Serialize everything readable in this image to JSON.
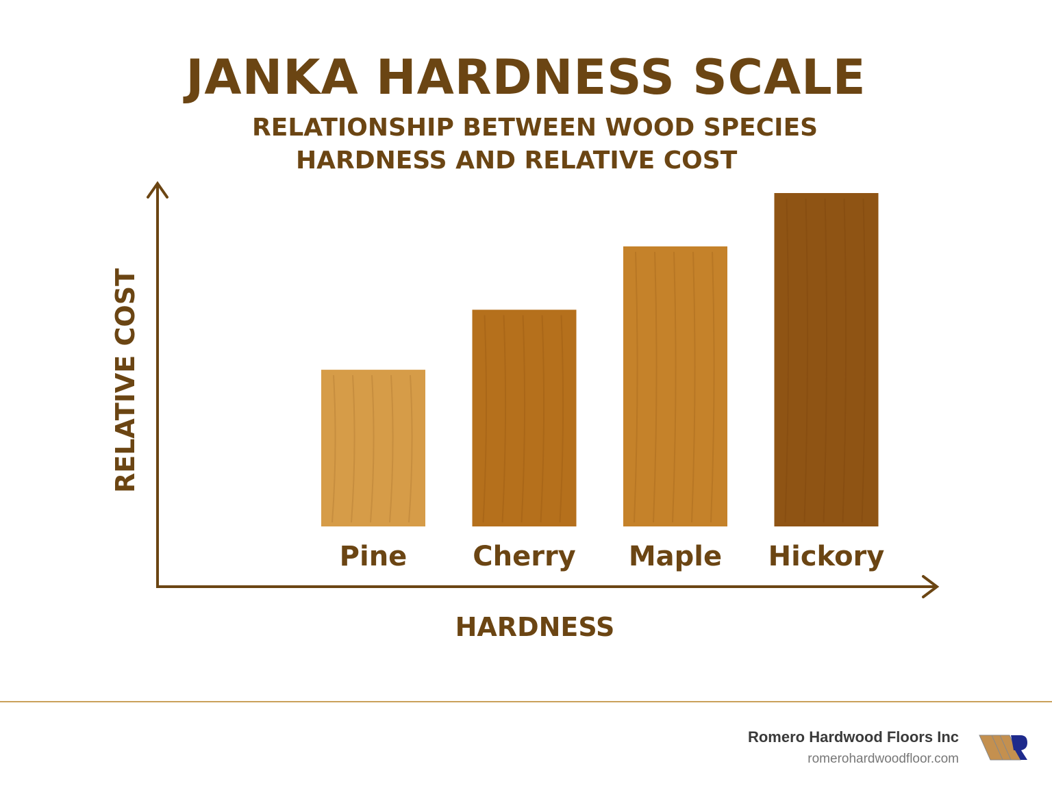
{
  "chart_data": {
    "type": "bar",
    "title": "JANKA HARDNESS SCALE",
    "subtitle": [
      "RELATIONSHIP BETWEEN WOOD SPECIES",
      "HARDNESS AND RELATIVE COST"
    ],
    "xlabel": "HARDNESS",
    "ylabel": "RELATIVE COST",
    "categories": [
      "Pine",
      "Cherry",
      "Maple",
      "Hickory"
    ],
    "values": [
      4.7,
      6.5,
      8.4,
      10
    ],
    "ylim": [
      0,
      10
    ],
    "grid": false,
    "colors": [
      "#d69c48",
      "#b5701c",
      "#c5822a",
      "#8f5414"
    ],
    "axis_color": "#6b4513"
  },
  "footer": {
    "company": "Romero Hardwood Floors Inc",
    "website": "romerohardwoodfloor.com",
    "logo_text": "R"
  }
}
